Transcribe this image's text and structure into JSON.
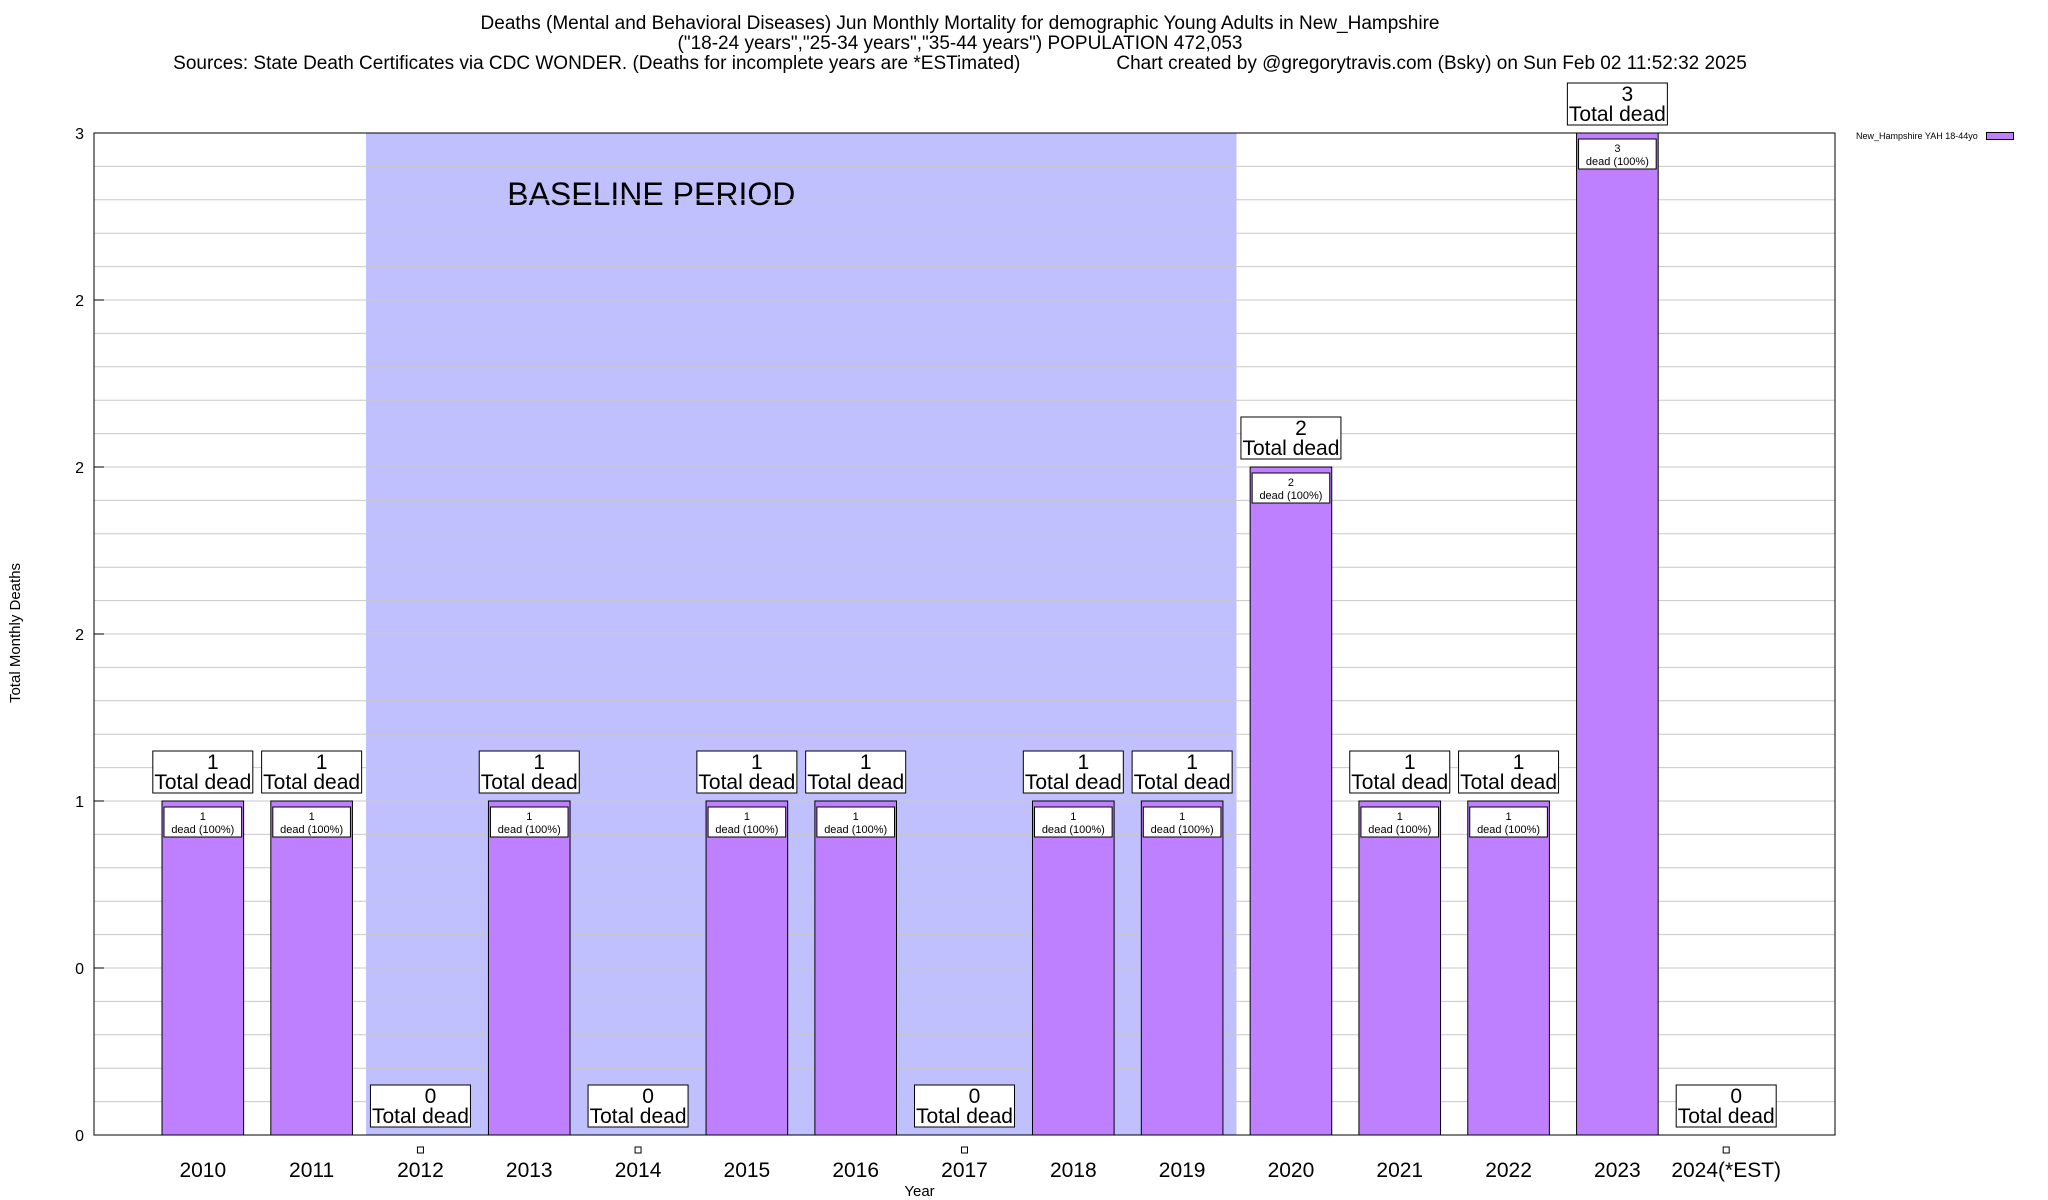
{
  "chart_data": {
    "type": "bar",
    "title": "Deaths (Mental and Behavioral Diseases) Jun Monthly Mortality for demographic Young Adults in New_Hampshire",
    "subtitle": "(\"18-24 years\",\"25-34 years\",\"35-44 years\") POPULATION 472,053",
    "sources": "Sources: State Death Certificates via CDC WONDER. (Deaths for incomplete years are *ESTimated)",
    "credit": "Chart created by @gregorytravis.com (Bsky) on Sun Feb 02 11:52:32 2025",
    "xlabel": "Year",
    "ylabel": "Total Monthly Deaths",
    "ylim": [
      0,
      3
    ],
    "y_tick_labels": [
      "0",
      "0",
      "1",
      "2",
      "2",
      "2",
      "3"
    ],
    "y_tick_values": [
      0,
      0.5,
      1,
      1.5,
      2,
      2.5,
      3
    ],
    "categories": [
      "2010",
      "2011",
      "2012",
      "2013",
      "2014",
      "2015",
      "2016",
      "2017",
      "2018",
      "2019",
      "2020",
      "2021",
      "2022",
      "2023",
      "2024(*EST)"
    ],
    "series": [
      {
        "name": "New_Hampshire YAH 18-44yo",
        "color": "#bf80ff",
        "values": [
          1,
          1,
          0,
          1,
          0,
          1,
          1,
          0,
          1,
          1,
          2,
          1,
          1,
          3,
          0
        ]
      }
    ],
    "total_label_suffix": "Total dead",
    "inner_label_suffix": "dead (100%)",
    "baseline": {
      "label": "BASELINE PERIOD",
      "from": "2012",
      "to": "2019",
      "color": "#c0c0ff"
    },
    "grid": true,
    "legend_position": "top-right"
  }
}
